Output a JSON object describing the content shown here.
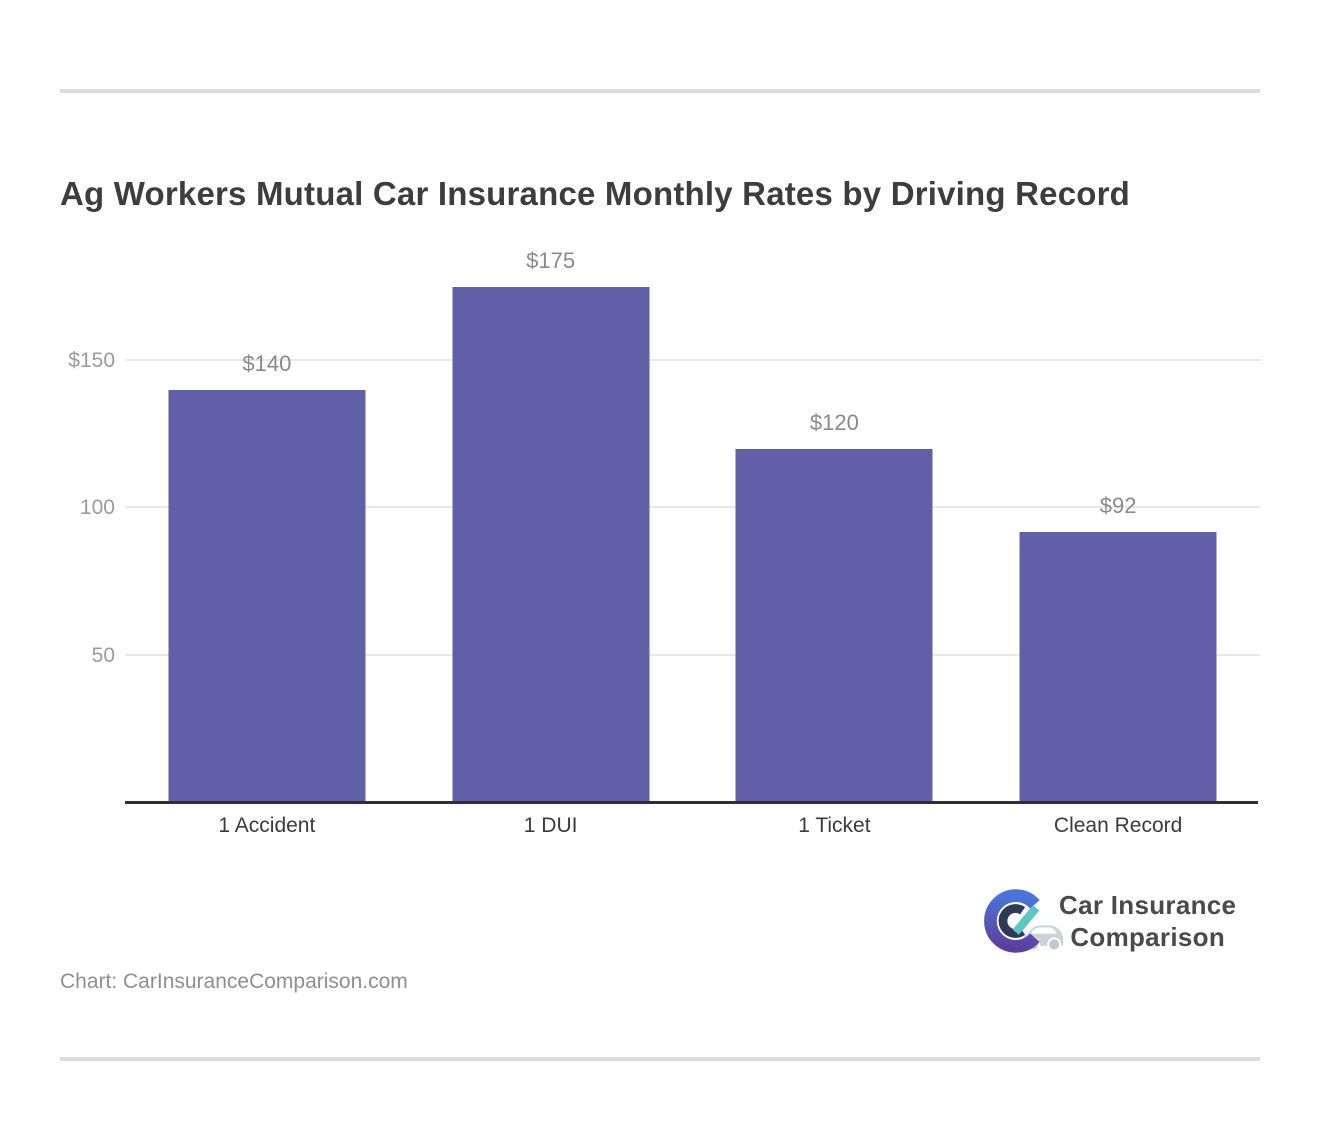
{
  "page": {
    "title": "Ag Workers Mutual Car Insurance Monthly Rates by Driving Record",
    "source_note": "Chart: CarInsuranceComparison.com"
  },
  "chart_data": {
    "type": "bar",
    "title": "Ag Workers Mutual Car Insurance Monthly Rates by Driving Record",
    "categories": [
      "1 Accident",
      "1 DUI",
      "1 Ticket",
      "Clean Record"
    ],
    "values": [
      140,
      175,
      120,
      92
    ],
    "value_labels": [
      "$140",
      "$175",
      "$120",
      "$92"
    ],
    "xlabel": "",
    "ylabel": "",
    "ylim": [
      0,
      197
    ],
    "yticks": [
      {
        "value": 50,
        "label": "50"
      },
      {
        "value": 100,
        "label": "100"
      },
      {
        "value": 150,
        "label": "$150"
      }
    ],
    "grid": "horizontal",
    "legend": "none",
    "bar_color": "#615fa7"
  },
  "logo": {
    "line1": "Car Insurance",
    "line2": "Comparison",
    "icon_name": "car-insurance-comparison-logo-icon"
  },
  "colors": {
    "bar": "#615fa7",
    "title_text": "#3d3d3d",
    "value_label_text": "#8a8a8a",
    "y_tick_text": "#9b9b9b",
    "x_label_text": "#3b3b3b",
    "gridline": "#e8e8e8",
    "axis_line": "#2f2f2f",
    "separator": "#dcdcdc",
    "footer_text": "#8f8f8f",
    "logo_text": "#4a4a4a",
    "logo_gradient_top": "#4a74d9",
    "logo_gradient_bottom": "#5b3f9f",
    "logo_inner_c": "#2c3a55",
    "logo_teal": "#5ac7c3",
    "logo_car_gray": "#cdd1d6"
  }
}
